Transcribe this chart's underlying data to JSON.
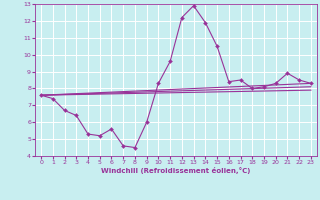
{
  "title": "",
  "xlabel": "Windchill (Refroidissement éolien,°C)",
  "ylabel": "",
  "bg_color": "#c8eef0",
  "line_color": "#993399",
  "grid_color": "#ffffff",
  "xlim": [
    -0.5,
    23.5
  ],
  "ylim": [
    4,
    13
  ],
  "yticks": [
    4,
    5,
    6,
    7,
    8,
    9,
    10,
    11,
    12,
    13
  ],
  "xticks": [
    0,
    1,
    2,
    3,
    4,
    5,
    6,
    7,
    8,
    9,
    10,
    11,
    12,
    13,
    14,
    15,
    16,
    17,
    18,
    19,
    20,
    21,
    22,
    23
  ],
  "series": {
    "hourly": {
      "x": [
        0,
        1,
        2,
        3,
        4,
        5,
        6,
        7,
        8,
        9,
        10,
        11,
        12,
        13,
        14,
        15,
        16,
        17,
        18,
        19,
        20,
        21,
        22,
        23
      ],
      "y": [
        7.6,
        7.4,
        6.7,
        6.4,
        5.3,
        5.2,
        5.6,
        4.6,
        4.5,
        6.0,
        8.3,
        9.6,
        12.2,
        12.9,
        11.9,
        10.5,
        8.4,
        8.5,
        8.0,
        8.1,
        8.3,
        8.9,
        8.5,
        8.3
      ]
    },
    "linear1": {
      "x": [
        0,
        23
      ],
      "y": [
        7.6,
        7.9
      ]
    },
    "linear2": {
      "x": [
        0,
        23
      ],
      "y": [
        7.6,
        8.1
      ]
    },
    "linear3": {
      "x": [
        0,
        23
      ],
      "y": [
        7.6,
        8.3
      ]
    }
  }
}
